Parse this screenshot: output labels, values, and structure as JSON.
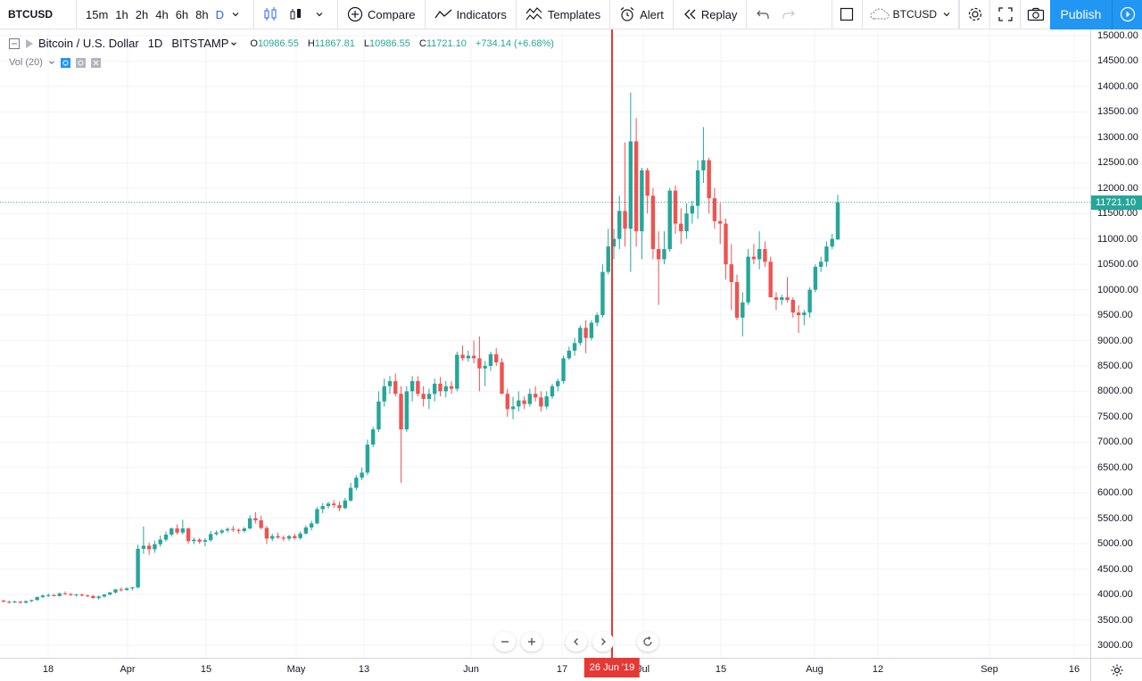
{
  "toolbar": {
    "symbol": "BTCUSD",
    "intervals": [
      "15m",
      "1h",
      "2h",
      "4h",
      "6h",
      "8h",
      "D"
    ],
    "active_interval": "D",
    "compare_label": "Compare",
    "indicators_label": "Indicators",
    "templates_label": "Templates",
    "alert_label": "Alert",
    "replay_label": "Replay",
    "layout_symbol": "BTCUSD",
    "publish_label": "Publish"
  },
  "legend": {
    "title": "Bitcoin / U.S. Dollar",
    "interval": "1D",
    "exchange": "BITSTAMP",
    "open_key": "O",
    "open": "10986.55",
    "high_key": "H",
    "high": "11867.81",
    "low_key": "L",
    "low": "10986.55",
    "close_key": "C",
    "close": "11721.10",
    "change": "+734.14 (+6.68%)",
    "vol_label": "Vol (20)"
  },
  "colors": {
    "up": "#26a69a",
    "down": "#ef5350",
    "accent": "#2196f3",
    "crosshair": "#e53935"
  },
  "chart_data": {
    "type": "candlestick",
    "title": "Bitcoin / U.S. Dollar",
    "ylim": [
      2800,
      15200
    ],
    "current_price": 11721.1,
    "crosshair_date_label": "26 Jun '19",
    "price_ticks": [
      "15000.00",
      "14500.00",
      "14000.00",
      "13500.00",
      "13000.00",
      "12500.00",
      "12000.00",
      "11500.00",
      "11000.00",
      "10500.00",
      "10000.00",
      "9500.00",
      "9000.00",
      "8500.00",
      "8000.00",
      "7500.00",
      "7000.00",
      "6500.00",
      "6000.00",
      "5500.00",
      "5000.00",
      "4500.00",
      "4000.00",
      "3500.00",
      "3000.00"
    ],
    "time_ticks": [
      "18",
      "Apr",
      "15",
      "May",
      "13",
      "Jun",
      "17",
      "Jul",
      "15",
      "Aug",
      "12",
      "Sep",
      "16"
    ],
    "current_price_label": "11721.10",
    "candles": [
      [
        3880,
        3900,
        3840,
        3860
      ],
      [
        3860,
        3880,
        3820,
        3850
      ],
      [
        3850,
        3880,
        3830,
        3860
      ],
      [
        3860,
        3870,
        3820,
        3840
      ],
      [
        3840,
        3880,
        3820,
        3870
      ],
      [
        3870,
        3900,
        3850,
        3890
      ],
      [
        3890,
        3960,
        3880,
        3950
      ],
      [
        3950,
        4000,
        3930,
        3980
      ],
      [
        3980,
        4020,
        3950,
        3990
      ],
      [
        3990,
        4010,
        3960,
        3970
      ],
      [
        3970,
        4040,
        3960,
        4020
      ],
      [
        4020,
        4060,
        3990,
        4010
      ],
      [
        4010,
        4030,
        3970,
        3990
      ],
      [
        3990,
        4010,
        3960,
        4000
      ],
      [
        4000,
        4020,
        3960,
        3980
      ],
      [
        3980,
        4000,
        3950,
        3970
      ],
      [
        3970,
        3990,
        3920,
        3930
      ],
      [
        3930,
        3980,
        3900,
        3960
      ],
      [
        3960,
        4010,
        3940,
        4000
      ],
      [
        4000,
        4050,
        3980,
        4040
      ],
      [
        4040,
        4110,
        4020,
        4100
      ],
      [
        4100,
        4140,
        4060,
        4090
      ],
      [
        4090,
        4140,
        4070,
        4120
      ],
      [
        4120,
        4150,
        4080,
        4140
      ],
      [
        4140,
        4980,
        4120,
        4900
      ],
      [
        4900,
        5340,
        4800,
        4960
      ],
      [
        4960,
        5020,
        4780,
        4890
      ],
      [
        4890,
        5060,
        4820,
        4990
      ],
      [
        4990,
        5160,
        4940,
        5080
      ],
      [
        5080,
        5240,
        5040,
        5180
      ],
      [
        5180,
        5320,
        5140,
        5300
      ],
      [
        5300,
        5380,
        5180,
        5220
      ],
      [
        5220,
        5470,
        5180,
        5300
      ],
      [
        5300,
        5320,
        5000,
        5050
      ],
      [
        5050,
        5120,
        4990,
        5080
      ],
      [
        5080,
        5110,
        5000,
        5040
      ],
      [
        5040,
        5110,
        4950,
        5070
      ],
      [
        5070,
        5250,
        5040,
        5190
      ],
      [
        5190,
        5260,
        5160,
        5220
      ],
      [
        5220,
        5290,
        5180,
        5260
      ],
      [
        5260,
        5320,
        5220,
        5290
      ],
      [
        5290,
        5350,
        5230,
        5270
      ],
      [
        5270,
        5300,
        5200,
        5250
      ],
      [
        5250,
        5330,
        5220,
        5300
      ],
      [
        5300,
        5560,
        5280,
        5500
      ],
      [
        5500,
        5620,
        5400,
        5460
      ],
      [
        5460,
        5550,
        5280,
        5310
      ],
      [
        5310,
        5350,
        4990,
        5100
      ],
      [
        5100,
        5200,
        5050,
        5150
      ],
      [
        5150,
        5220,
        5100,
        5120
      ],
      [
        5120,
        5160,
        5050,
        5100
      ],
      [
        5100,
        5170,
        5060,
        5150
      ],
      [
        5150,
        5200,
        5080,
        5110
      ],
      [
        5110,
        5240,
        5080,
        5200
      ],
      [
        5200,
        5360,
        5180,
        5320
      ],
      [
        5320,
        5450,
        5260,
        5400
      ],
      [
        5400,
        5720,
        5380,
        5680
      ],
      [
        5680,
        5800,
        5600,
        5740
      ],
      [
        5740,
        5830,
        5690,
        5790
      ],
      [
        5790,
        5860,
        5700,
        5760
      ],
      [
        5760,
        5830,
        5640,
        5700
      ],
      [
        5700,
        5900,
        5680,
        5850
      ],
      [
        5850,
        6200,
        5830,
        6100
      ],
      [
        6100,
        6350,
        6050,
        6300
      ],
      [
        6300,
        6500,
        6250,
        6400
      ],
      [
        6400,
        7050,
        6350,
        6950
      ],
      [
        6950,
        7300,
        6900,
        7250
      ],
      [
        7250,
        8000,
        7200,
        7800
      ],
      [
        7800,
        8250,
        7700,
        8100
      ],
      [
        8100,
        8300,
        7950,
        8200
      ],
      [
        8200,
        8350,
        7900,
        7950
      ],
      [
        7950,
        8100,
        6200,
        7250
      ],
      [
        7250,
        8100,
        7200,
        8000
      ],
      [
        8000,
        8300,
        7800,
        8200
      ],
      [
        8200,
        8300,
        7900,
        7950
      ],
      [
        7950,
        8100,
        7700,
        7850
      ],
      [
        7850,
        8050,
        7650,
        7950
      ],
      [
        7950,
        8250,
        7800,
        8150
      ],
      [
        8150,
        8280,
        7900,
        8000
      ],
      [
        8000,
        8200,
        7880,
        8100
      ],
      [
        8100,
        8200,
        7950,
        8050
      ],
      [
        8050,
        8780,
        8000,
        8720
      ],
      [
        8720,
        8900,
        8600,
        8650
      ],
      [
        8650,
        8800,
        8580,
        8700
      ],
      [
        8700,
        9000,
        8550,
        8650
      ],
      [
        8650,
        9080,
        8000,
        8450
      ],
      [
        8450,
        8600,
        8100,
        8500
      ],
      [
        8500,
        8780,
        8400,
        8730
      ],
      [
        8730,
        8850,
        8500,
        8570
      ],
      [
        8570,
        8650,
        8000,
        7950
      ],
      [
        7950,
        8050,
        7500,
        7650
      ],
      [
        7650,
        7890,
        7450,
        7700
      ],
      [
        7700,
        8000,
        7600,
        7820
      ],
      [
        7820,
        7900,
        7650,
        7750
      ],
      [
        7750,
        8050,
        7700,
        7950
      ],
      [
        7950,
        8100,
        7800,
        7880
      ],
      [
        7880,
        8000,
        7600,
        7700
      ],
      [
        7700,
        8000,
        7650,
        7900
      ],
      [
        7900,
        8150,
        7850,
        8100
      ],
      [
        8100,
        8250,
        8000,
        8200
      ],
      [
        8200,
        8700,
        8150,
        8650
      ],
      [
        8650,
        8880,
        8620,
        8800
      ],
      [
        8800,
        9050,
        8700,
        8950
      ],
      [
        8950,
        9300,
        8900,
        9250
      ],
      [
        9250,
        9400,
        8750,
        9050
      ],
      [
        9050,
        9400,
        9000,
        9350
      ],
      [
        9350,
        9550,
        9280,
        9500
      ],
      [
        9500,
        10500,
        9450,
        10350
      ],
      [
        10350,
        11200,
        10300,
        10850
      ],
      [
        10850,
        11200,
        10600,
        11000
      ],
      [
        11000,
        11850,
        10800,
        11550
      ],
      [
        11550,
        12900,
        10850,
        11200
      ],
      [
        11200,
        13880,
        10350,
        12920
      ],
      [
        12920,
        13380,
        10850,
        11150
      ],
      [
        11150,
        12400,
        10600,
        12350
      ],
      [
        12350,
        12400,
        11500,
        11850
      ],
      [
        11850,
        12000,
        10600,
        10800
      ],
      [
        10800,
        11150,
        9700,
        10600
      ],
      [
        10600,
        11150,
        10500,
        10800
      ],
      [
        10800,
        12000,
        10750,
        11950
      ],
      [
        11950,
        12050,
        11100,
        11300
      ],
      [
        11300,
        11600,
        10900,
        11150
      ],
      [
        11150,
        11700,
        11000,
        11500
      ],
      [
        11500,
        11750,
        11300,
        11650
      ],
      [
        11650,
        12550,
        11400,
        12350
      ],
      [
        12350,
        13200,
        12100,
        12550
      ],
      [
        12550,
        12600,
        11500,
        11800
      ],
      [
        11800,
        12000,
        11200,
        11350
      ],
      [
        11350,
        11700,
        10900,
        11300
      ],
      [
        11300,
        11400,
        10200,
        10500
      ],
      [
        10500,
        10900,
        9600,
        10150
      ],
      [
        10150,
        10300,
        9400,
        9450
      ],
      [
        9450,
        9950,
        9080,
        9750
      ],
      [
        9750,
        10800,
        9700,
        10650
      ],
      [
        10650,
        10900,
        10500,
        10600
      ],
      [
        10600,
        11150,
        10400,
        10800
      ],
      [
        10800,
        10950,
        10450,
        10550
      ],
      [
        10550,
        10650,
        9900,
        9850
      ],
      [
        9850,
        9950,
        9600,
        9800
      ],
      [
        9800,
        9900,
        9700,
        9850
      ],
      [
        9850,
        10250,
        9750,
        9800
      ],
      [
        9800,
        9850,
        9450,
        9550
      ],
      [
        9550,
        9700,
        9150,
        9500
      ],
      [
        9500,
        9600,
        9300,
        9550
      ],
      [
        9550,
        10050,
        9450,
        10000
      ],
      [
        10000,
        10500,
        9950,
        10450
      ],
      [
        10450,
        10650,
        10350,
        10550
      ],
      [
        10550,
        10950,
        10450,
        10850
      ],
      [
        10850,
        11100,
        10800,
        11000
      ],
      [
        10986.55,
        11867.81,
        10986.55,
        11721.1
      ]
    ]
  }
}
